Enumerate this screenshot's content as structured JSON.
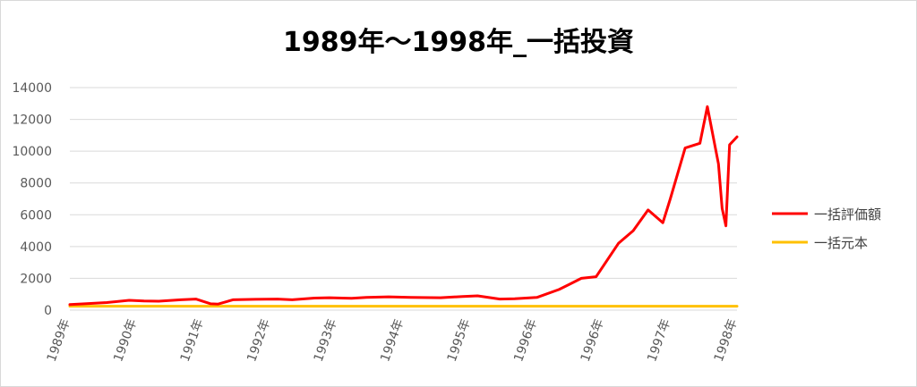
{
  "chart_data": {
    "type": "line",
    "title": "1989年～1998年_一括投資",
    "xlabel": "",
    "ylabel": "",
    "ylim": [
      0,
      14000
    ],
    "y_ticks": [
      0,
      2000,
      4000,
      6000,
      8000,
      10000,
      12000,
      14000
    ],
    "x_range": [
      1989.0,
      1998.0
    ],
    "x_tick_labels": [
      "1989年",
      "1990年",
      "1991年",
      "1992年",
      "1993年",
      "1994年",
      "1995年",
      "1996年",
      "1996年",
      "1997年",
      "1998年"
    ],
    "grid": true,
    "legend_position": "right",
    "series": [
      {
        "name": "一括評価額",
        "color": "#ff0000",
        "x": [
          1989.0,
          1989.2,
          1989.5,
          1989.8,
          1990.0,
          1990.2,
          1990.5,
          1990.7,
          1990.9,
          1991.0,
          1991.2,
          1991.5,
          1991.8,
          1992.0,
          1992.3,
          1992.5,
          1992.8,
          1993.0,
          1993.3,
          1993.6,
          1994.0,
          1994.3,
          1994.5,
          1994.8,
          1995.0,
          1995.3,
          1995.6,
          1995.9,
          1996.1,
          1996.4,
          1996.6,
          1996.8,
          1997.0,
          1997.1,
          1997.3,
          1997.5,
          1997.6,
          1997.75,
          1997.8,
          1997.85,
          1997.9,
          1998.0
        ],
        "values": [
          350,
          400,
          480,
          620,
          580,
          560,
          650,
          700,
          400,
          380,
          650,
          680,
          700,
          650,
          760,
          780,
          740,
          800,
          840,
          800,
          780,
          860,
          900,
          700,
          720,
          800,
          1300,
          2000,
          2100,
          4200,
          5000,
          6300,
          5500,
          7000,
          10200,
          10500,
          12800,
          9200,
          6400,
          5300,
          10400,
          10900
        ]
      },
      {
        "name": "一括元本",
        "color": "#ffc000",
        "x": [
          1989.0,
          1998.0
        ],
        "values": [
          250,
          250
        ]
      }
    ]
  }
}
